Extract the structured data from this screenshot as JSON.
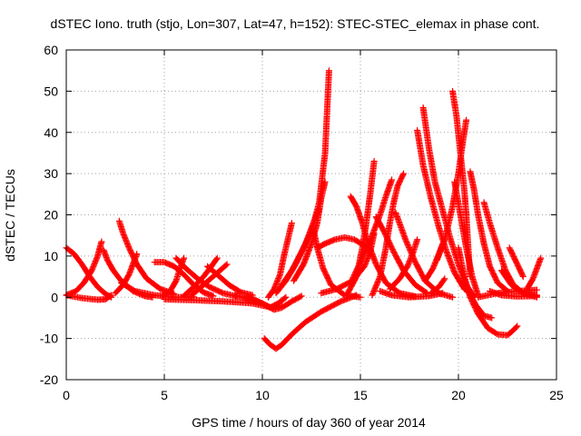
{
  "chart_data": {
    "type": "scatter",
    "title": "dSTEC Iono. truth (stjo, Lon=307, Lat=47, h=152): STEC-STEC_elemax in phase cont.",
    "xlabel": "GPS time / hours of day 360 of year 2014",
    "ylabel": "dSTEC  / TECUs",
    "xlim": [
      0,
      25
    ],
    "ylim": [
      -20,
      60
    ],
    "xticks": [
      0,
      5,
      10,
      15,
      20,
      25
    ],
    "yticks": [
      -20,
      -10,
      0,
      10,
      20,
      30,
      40,
      50,
      60
    ],
    "grid": true,
    "marker": "+",
    "color": "#ff0000",
    "series": [
      {
        "points": [
          [
            0.0,
            12.0
          ],
          [
            0.4,
            10.5
          ],
          [
            0.8,
            8.0
          ],
          [
            1.2,
            5.0
          ],
          [
            1.6,
            2.5
          ],
          [
            2.0,
            0.8
          ],
          [
            2.3,
            0.0
          ]
        ]
      },
      {
        "points": [
          [
            0.0,
            0.5
          ],
          [
            0.5,
            1.5
          ],
          [
            0.9,
            3.5
          ],
          [
            1.3,
            6.5
          ],
          [
            1.6,
            10.0
          ],
          [
            1.8,
            13.5
          ]
        ]
      },
      {
        "points": [
          [
            0.0,
            0.5
          ],
          [
            0.8,
            -0.2
          ],
          [
            1.6,
            -0.6
          ],
          [
            2.0,
            -0.5
          ],
          [
            2.3,
            0.5
          ]
        ]
      },
      {
        "points": [
          [
            1.9,
            11.5
          ],
          [
            2.1,
            9.0
          ],
          [
            2.4,
            6.5
          ],
          [
            2.8,
            4.0
          ],
          [
            3.4,
            1.5
          ],
          [
            4.0,
            0.3
          ],
          [
            4.4,
            0.0
          ]
        ]
      },
      {
        "points": [
          [
            2.5,
            1.0
          ],
          [
            2.9,
            3.0
          ],
          [
            3.2,
            5.5
          ],
          [
            3.4,
            8.0
          ],
          [
            3.6,
            10.5
          ]
        ]
      },
      {
        "points": [
          [
            2.7,
            18.5
          ],
          [
            2.9,
            15.5
          ],
          [
            3.2,
            12.0
          ],
          [
            3.6,
            8.0
          ],
          [
            4.1,
            4.5
          ],
          [
            4.8,
            2.0
          ],
          [
            5.5,
            0.8
          ]
        ]
      },
      {
        "points": [
          [
            2.8,
            3.5
          ],
          [
            3.5,
            1.5
          ],
          [
            4.5,
            0.5
          ],
          [
            5.5,
            0.0
          ],
          [
            6.5,
            0.1
          ]
        ]
      },
      {
        "points": [
          [
            4.5,
            8.5
          ],
          [
            5.0,
            8.5
          ],
          [
            5.5,
            7.5
          ],
          [
            6.0,
            5.5
          ],
          [
            6.5,
            3.0
          ],
          [
            7.0,
            1.2
          ],
          [
            7.5,
            0.3
          ]
        ]
      },
      {
        "points": [
          [
            4.9,
            0.3
          ],
          [
            5.3,
            1.5
          ],
          [
            5.6,
            4.0
          ],
          [
            5.8,
            7.0
          ],
          [
            6.0,
            9.5
          ]
        ]
      },
      {
        "points": [
          [
            5.6,
            9.5
          ],
          [
            6.1,
            7.0
          ],
          [
            6.7,
            4.5
          ],
          [
            7.3,
            2.5
          ],
          [
            8.0,
            1.0
          ],
          [
            8.7,
            0.2
          ]
        ]
      },
      {
        "points": [
          [
            6.0,
            0.3
          ],
          [
            6.5,
            2.5
          ],
          [
            7.0,
            5.0
          ],
          [
            7.4,
            7.5
          ],
          [
            7.7,
            9.5
          ]
        ]
      },
      {
        "points": [
          [
            6.4,
            0.5
          ],
          [
            7.0,
            3.0
          ],
          [
            7.6,
            5.5
          ],
          [
            8.2,
            8.0
          ]
        ]
      },
      {
        "points": [
          [
            7.2,
            7.5
          ],
          [
            7.7,
            5.5
          ],
          [
            8.3,
            3.0
          ],
          [
            8.9,
            1.2
          ],
          [
            9.5,
            0.5
          ]
        ]
      },
      {
        "points": [
          [
            5.0,
            -0.5
          ],
          [
            6.5,
            -0.7
          ],
          [
            8.0,
            -1.0
          ],
          [
            9.0,
            -1.3
          ],
          [
            9.5,
            -1.5
          ],
          [
            10.0,
            -2.0
          ],
          [
            10.5,
            -2.5
          ],
          [
            11.0,
            -2.0
          ]
        ]
      },
      {
        "points": [
          [
            8.6,
            0.5
          ],
          [
            9.3,
            -0.5
          ],
          [
            10.0,
            -1.5
          ],
          [
            10.4,
            -2.5
          ],
          [
            10.8,
            -1.5
          ],
          [
            11.2,
            0.0
          ]
        ]
      },
      {
        "points": [
          [
            9.2,
            0.3
          ],
          [
            9.7,
            -0.8
          ],
          [
            10.2,
            -2.0
          ],
          [
            10.6,
            -3.0
          ],
          [
            11.0,
            -2.5
          ],
          [
            11.5,
            -1.0
          ],
          [
            12.0,
            0.3
          ]
        ]
      },
      {
        "points": [
          [
            10.1,
            -10.0
          ],
          [
            10.4,
            -11.5
          ],
          [
            10.7,
            -12.5
          ],
          [
            11.0,
            -11.5
          ],
          [
            11.5,
            -9.0
          ],
          [
            12.2,
            -6.0
          ],
          [
            13.0,
            -3.5
          ],
          [
            14.0,
            -1.0
          ],
          [
            14.8,
            0.5
          ]
        ]
      },
      {
        "points": [
          [
            10.3,
            0.0
          ],
          [
            10.6,
            2.0
          ],
          [
            10.9,
            5.5
          ],
          [
            11.1,
            10.0
          ],
          [
            11.3,
            14.0
          ],
          [
            11.5,
            18.0
          ]
        ]
      },
      {
        "points": [
          [
            10.7,
            1.0
          ],
          [
            11.2,
            4.0
          ],
          [
            11.7,
            8.0
          ],
          [
            12.2,
            13.0
          ],
          [
            12.6,
            18.0
          ],
          [
            12.9,
            21.5
          ]
        ]
      },
      {
        "points": [
          [
            11.0,
            3.0
          ],
          [
            11.5,
            6.5
          ],
          [
            12.0,
            11.0
          ],
          [
            12.5,
            16.0
          ],
          [
            12.9,
            23.0
          ],
          [
            13.2,
            35.0
          ],
          [
            13.4,
            55.0
          ]
        ]
      },
      {
        "points": [
          [
            11.6,
            4.0
          ],
          [
            12.1,
            8.0
          ],
          [
            12.5,
            13.0
          ],
          [
            12.8,
            18.0
          ],
          [
            13.0,
            24.0
          ],
          [
            13.2,
            28.0
          ]
        ]
      },
      {
        "points": [
          [
            12.6,
            16.5
          ],
          [
            12.8,
            12.0
          ],
          [
            13.1,
            7.0
          ],
          [
            13.5,
            3.0
          ],
          [
            14.2,
            0.5
          ],
          [
            15.0,
            0.0
          ]
        ]
      },
      {
        "points": [
          [
            12.8,
            12.0
          ],
          [
            13.2,
            13.0
          ],
          [
            13.7,
            14.0
          ],
          [
            14.2,
            14.5
          ],
          [
            14.7,
            14.0
          ],
          [
            15.2,
            12.5
          ],
          [
            15.5,
            11.0
          ]
        ]
      },
      {
        "points": [
          [
            13.0,
            1.0
          ],
          [
            13.8,
            2.0
          ],
          [
            14.6,
            4.0
          ],
          [
            15.2,
            7.5
          ],
          [
            15.5,
            11.0
          ],
          [
            15.7,
            15.5
          ]
        ]
      },
      {
        "points": [
          [
            14.5,
            24.5
          ],
          [
            14.8,
            22.0
          ],
          [
            15.1,
            18.0
          ],
          [
            15.4,
            13.0
          ],
          [
            15.8,
            8.0
          ],
          [
            16.3,
            3.5
          ],
          [
            17.0,
            1.0
          ],
          [
            17.8,
            0.2
          ]
        ]
      },
      {
        "points": [
          [
            14.3,
            0.5
          ],
          [
            14.8,
            5.0
          ],
          [
            15.1,
            12.0
          ],
          [
            15.3,
            18.0
          ],
          [
            15.5,
            25.0
          ],
          [
            15.7,
            33.0
          ]
        ]
      },
      {
        "points": [
          [
            14.6,
            4.5
          ],
          [
            15.1,
            9.5
          ],
          [
            15.6,
            15.0
          ],
          [
            16.0,
            20.0
          ],
          [
            16.3,
            24.5
          ],
          [
            16.6,
            28.5
          ]
        ]
      },
      {
        "points": [
          [
            15.8,
            19.5
          ],
          [
            16.2,
            16.0
          ],
          [
            16.7,
            11.0
          ],
          [
            17.2,
            6.5
          ],
          [
            17.8,
            3.0
          ],
          [
            18.4,
            1.0
          ]
        ]
      },
      {
        "points": [
          [
            15.6,
            0.5
          ],
          [
            16.0,
            5.0
          ],
          [
            16.3,
            12.0
          ],
          [
            16.5,
            18.0
          ],
          [
            16.7,
            23.0
          ],
          [
            16.9,
            27.0
          ],
          [
            17.2,
            30.0
          ]
        ]
      },
      {
        "points": [
          [
            16.0,
            1.5
          ],
          [
            16.6,
            0.5
          ],
          [
            17.5,
            0.0
          ],
          [
            18.5,
            0.3
          ],
          [
            19.2,
            1.0
          ]
        ]
      },
      {
        "points": [
          [
            16.5,
            2.0
          ],
          [
            17.0,
            4.5
          ],
          [
            17.4,
            7.5
          ],
          [
            17.7,
            11.0
          ],
          [
            17.9,
            14.0
          ]
        ]
      },
      {
        "points": [
          [
            16.8,
            20.5
          ],
          [
            17.3,
            14.0
          ],
          [
            17.8,
            8.5
          ],
          [
            18.3,
            4.0
          ],
          [
            19.0,
            1.0
          ],
          [
            19.7,
            0.0
          ]
        ]
      },
      {
        "points": [
          [
            17.9,
            40.5
          ],
          [
            18.2,
            32.0
          ],
          [
            18.6,
            24.0
          ],
          [
            19.0,
            17.0
          ],
          [
            19.4,
            11.0
          ],
          [
            19.8,
            6.0
          ],
          [
            20.3,
            2.0
          ],
          [
            20.8,
            0.5
          ]
        ]
      },
      {
        "points": [
          [
            18.2,
            46.0
          ],
          [
            18.5,
            36.0
          ],
          [
            18.8,
            28.0
          ],
          [
            19.2,
            21.0
          ],
          [
            19.6,
            14.0
          ],
          [
            20.0,
            8.0
          ],
          [
            20.4,
            3.0
          ],
          [
            20.8,
            0.0
          ]
        ]
      },
      {
        "points": [
          [
            18.3,
            4.0
          ],
          [
            18.7,
            7.0
          ],
          [
            19.0,
            10.5
          ],
          [
            19.2,
            13.0
          ]
        ]
      },
      {
        "points": [
          [
            18.6,
            1.0
          ],
          [
            19.0,
            2.5
          ],
          [
            19.3,
            4.5
          ]
        ]
      },
      {
        "points": [
          [
            18.9,
            9.0
          ],
          [
            19.3,
            14.0
          ],
          [
            19.7,
            22.0
          ],
          [
            20.0,
            30.0
          ],
          [
            20.2,
            37.0
          ],
          [
            20.4,
            43.0
          ]
        ]
      },
      {
        "points": [
          [
            19.7,
            50.0
          ],
          [
            19.9,
            44.0
          ],
          [
            20.1,
            35.0
          ],
          [
            20.3,
            26.0
          ],
          [
            20.4,
            20.0
          ],
          [
            20.5,
            12.0
          ],
          [
            20.6,
            5.0
          ]
        ]
      },
      {
        "points": [
          [
            19.8,
            28.0
          ],
          [
            20.1,
            20.0
          ],
          [
            20.4,
            12.0
          ],
          [
            20.7,
            5.0
          ],
          [
            21.0,
            0.5
          ]
        ]
      },
      {
        "points": [
          [
            20.0,
            12.0
          ],
          [
            20.3,
            5.0
          ],
          [
            20.6,
            0.0
          ],
          [
            21.0,
            -4.0
          ],
          [
            21.5,
            -7.5
          ],
          [
            22.0,
            -9.0
          ],
          [
            22.5,
            -9.2
          ],
          [
            22.8,
            -8.0
          ],
          [
            23.0,
            -7.0
          ]
        ]
      },
      {
        "points": [
          [
            20.6,
            30.5
          ],
          [
            20.8,
            26.0
          ],
          [
            21.0,
            20.0
          ],
          [
            21.3,
            13.0
          ],
          [
            21.6,
            7.5
          ],
          [
            22.0,
            3.5
          ],
          [
            22.5,
            1.5
          ]
        ]
      },
      {
        "points": [
          [
            20.5,
            1.5
          ],
          [
            20.9,
            -2.0
          ],
          [
            21.3,
            -4.5
          ],
          [
            21.7,
            -5.0
          ]
        ]
      },
      {
        "points": [
          [
            21.3,
            23.0
          ],
          [
            21.6,
            18.0
          ],
          [
            22.0,
            12.0
          ],
          [
            22.4,
            6.5
          ],
          [
            22.8,
            3.0
          ],
          [
            23.3,
            1.0
          ],
          [
            24.0,
            0.5
          ]
        ]
      },
      {
        "points": [
          [
            21.6,
            1.5
          ],
          [
            22.2,
            0.5
          ],
          [
            23.0,
            0.2
          ],
          [
            24.0,
            0.3
          ]
        ]
      },
      {
        "points": [
          [
            22.2,
            6.5
          ],
          [
            22.7,
            3.0
          ],
          [
            23.3,
            1.0
          ],
          [
            24.0,
            0.0
          ]
        ]
      },
      {
        "points": [
          [
            22.6,
            12.0
          ],
          [
            23.0,
            8.0
          ],
          [
            23.3,
            5.0
          ]
        ]
      },
      {
        "points": [
          [
            23.5,
            2.0
          ],
          [
            23.8,
            4.5
          ],
          [
            24.0,
            7.0
          ],
          [
            24.2,
            9.5
          ]
        ]
      },
      {
        "points": [
          [
            21.0,
            0.0
          ],
          [
            22.0,
            1.0
          ],
          [
            23.0,
            1.5
          ],
          [
            24.0,
            1.8
          ]
        ]
      }
    ]
  }
}
